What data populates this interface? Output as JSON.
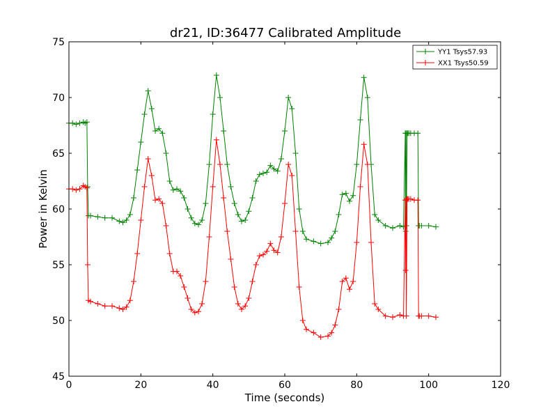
{
  "chart_data": {
    "type": "line",
    "title": "dr21, ID:36477 Calibrated Amplitude",
    "xlabel": "Time (seconds)",
    "ylabel": "Power in Kelvin",
    "xlim": [
      0,
      120
    ],
    "ylim": [
      45,
      75
    ],
    "xticks": [
      0,
      20,
      40,
      60,
      80,
      100,
      120
    ],
    "yticks": [
      45,
      50,
      55,
      60,
      65,
      70,
      75
    ],
    "grid": false,
    "legend_position": "top-right",
    "marker": "+",
    "series": [
      {
        "name": "YY1 Tsys57.93",
        "color": "#008000",
        "x": [
          0,
          1,
          2,
          3,
          4,
          4.5,
          5,
          5.2,
          5.4,
          6,
          8,
          10,
          12,
          14,
          15,
          16,
          17,
          18,
          19,
          20,
          21,
          22,
          23,
          24,
          25,
          26,
          27,
          28,
          29,
          30,
          31,
          32,
          33,
          34,
          35,
          36,
          37,
          38,
          39,
          40,
          41,
          42,
          43,
          44,
          45,
          46,
          47,
          48,
          49,
          50,
          51,
          52,
          53,
          54,
          55,
          56,
          57,
          58,
          59,
          60,
          61,
          62,
          63,
          64,
          65,
          66,
          68,
          70,
          72,
          73,
          74,
          75,
          76,
          77,
          78,
          79,
          80,
          81,
          82,
          83,
          84,
          85,
          86,
          88,
          90,
          92,
          93,
          93.5,
          93.6,
          93.7,
          93.8,
          94,
          94.2,
          94.5,
          95,
          96,
          97,
          97.2,
          97.4,
          98,
          100,
          102
        ],
        "y": [
          67.7,
          67.7,
          67.6,
          67.7,
          67.8,
          67.7,
          67.8,
          62.0,
          59.4,
          59.4,
          59.3,
          59.2,
          59.2,
          58.9,
          58.8,
          59.0,
          59.5,
          61.0,
          63.5,
          66.0,
          68.5,
          70.6,
          69.0,
          67.0,
          67.2,
          66.8,
          65.0,
          62.5,
          61.7,
          61.8,
          61.6,
          61.0,
          60.0,
          59.2,
          58.7,
          58.6,
          59.0,
          60.5,
          64.0,
          68.5,
          72.0,
          70.0,
          67.0,
          64.0,
          62.0,
          60.5,
          59.5,
          58.9,
          59.0,
          59.8,
          61.0,
          62.5,
          63.1,
          63.2,
          63.3,
          63.9,
          63.6,
          63.4,
          64.5,
          67.0,
          70.0,
          69.0,
          65.0,
          60.0,
          58.0,
          57.3,
          57.1,
          56.9,
          57.0,
          57.4,
          58.0,
          59.5,
          61.3,
          61.4,
          60.7,
          61.2,
          64.0,
          68.0,
          71.8,
          70.0,
          64.0,
          59.5,
          59.0,
          58.5,
          58.3,
          58.5,
          58.4,
          66.8,
          58.0,
          66.8,
          58.5,
          66.8,
          66.8,
          66.8,
          66.8,
          66.8,
          66.8,
          58.5,
          58.5,
          58.5,
          58.5,
          58.4
        ]
      },
      {
        "name": "XX1 Tsys50.59",
        "color": "#ff0000",
        "x": [
          0,
          1,
          2,
          3,
          4,
          4.5,
          5,
          5.2,
          5.4,
          6,
          8,
          10,
          12,
          14,
          15,
          16,
          17,
          18,
          19,
          20,
          21,
          22,
          23,
          24,
          25,
          26,
          27,
          28,
          29,
          30,
          31,
          32,
          33,
          34,
          35,
          36,
          37,
          38,
          39,
          40,
          41,
          42,
          43,
          44,
          45,
          46,
          47,
          48,
          49,
          50,
          51,
          52,
          53,
          54,
          55,
          56,
          57,
          58,
          59,
          60,
          61,
          62,
          63,
          64,
          65,
          66,
          68,
          70,
          72,
          73,
          74,
          75,
          76,
          77,
          78,
          79,
          80,
          81,
          82,
          83,
          84,
          85,
          86,
          88,
          90,
          92,
          93,
          93.5,
          93.6,
          93.7,
          93.8,
          94,
          94.2,
          94.5,
          95,
          96,
          97,
          97.2,
          97.4,
          98,
          100,
          102
        ],
        "y": [
          61.8,
          61.8,
          61.7,
          61.8,
          62.1,
          62.0,
          61.9,
          55.0,
          51.8,
          51.7,
          51.5,
          51.3,
          51.3,
          51.1,
          51.0,
          51.2,
          51.8,
          53.5,
          56.0,
          59.0,
          62.0,
          64.5,
          63.0,
          60.8,
          60.9,
          60.5,
          58.5,
          56.0,
          54.4,
          54.4,
          54.0,
          53.0,
          52.0,
          51.0,
          50.7,
          50.8,
          51.5,
          53.5,
          57.5,
          62.0,
          66.2,
          64.0,
          61.0,
          58.0,
          55.5,
          53.0,
          51.5,
          51.0,
          51.3,
          52.0,
          53.5,
          55.0,
          55.8,
          55.9,
          56.2,
          56.9,
          56.3,
          56.1,
          57.5,
          60.5,
          64.0,
          63.0,
          58.0,
          53.0,
          50.0,
          49.2,
          48.9,
          48.5,
          48.6,
          48.9,
          49.6,
          51.0,
          53.5,
          53.8,
          52.8,
          53.5,
          57.0,
          62.0,
          65.8,
          64.0,
          57.0,
          51.5,
          51.0,
          50.4,
          50.3,
          50.5,
          50.4,
          60.8,
          54.5,
          60.8,
          50.4,
          60.9,
          60.9,
          60.9,
          60.9,
          60.8,
          60.8,
          50.4,
          50.4,
          50.4,
          50.4,
          50.3
        ]
      }
    ]
  }
}
